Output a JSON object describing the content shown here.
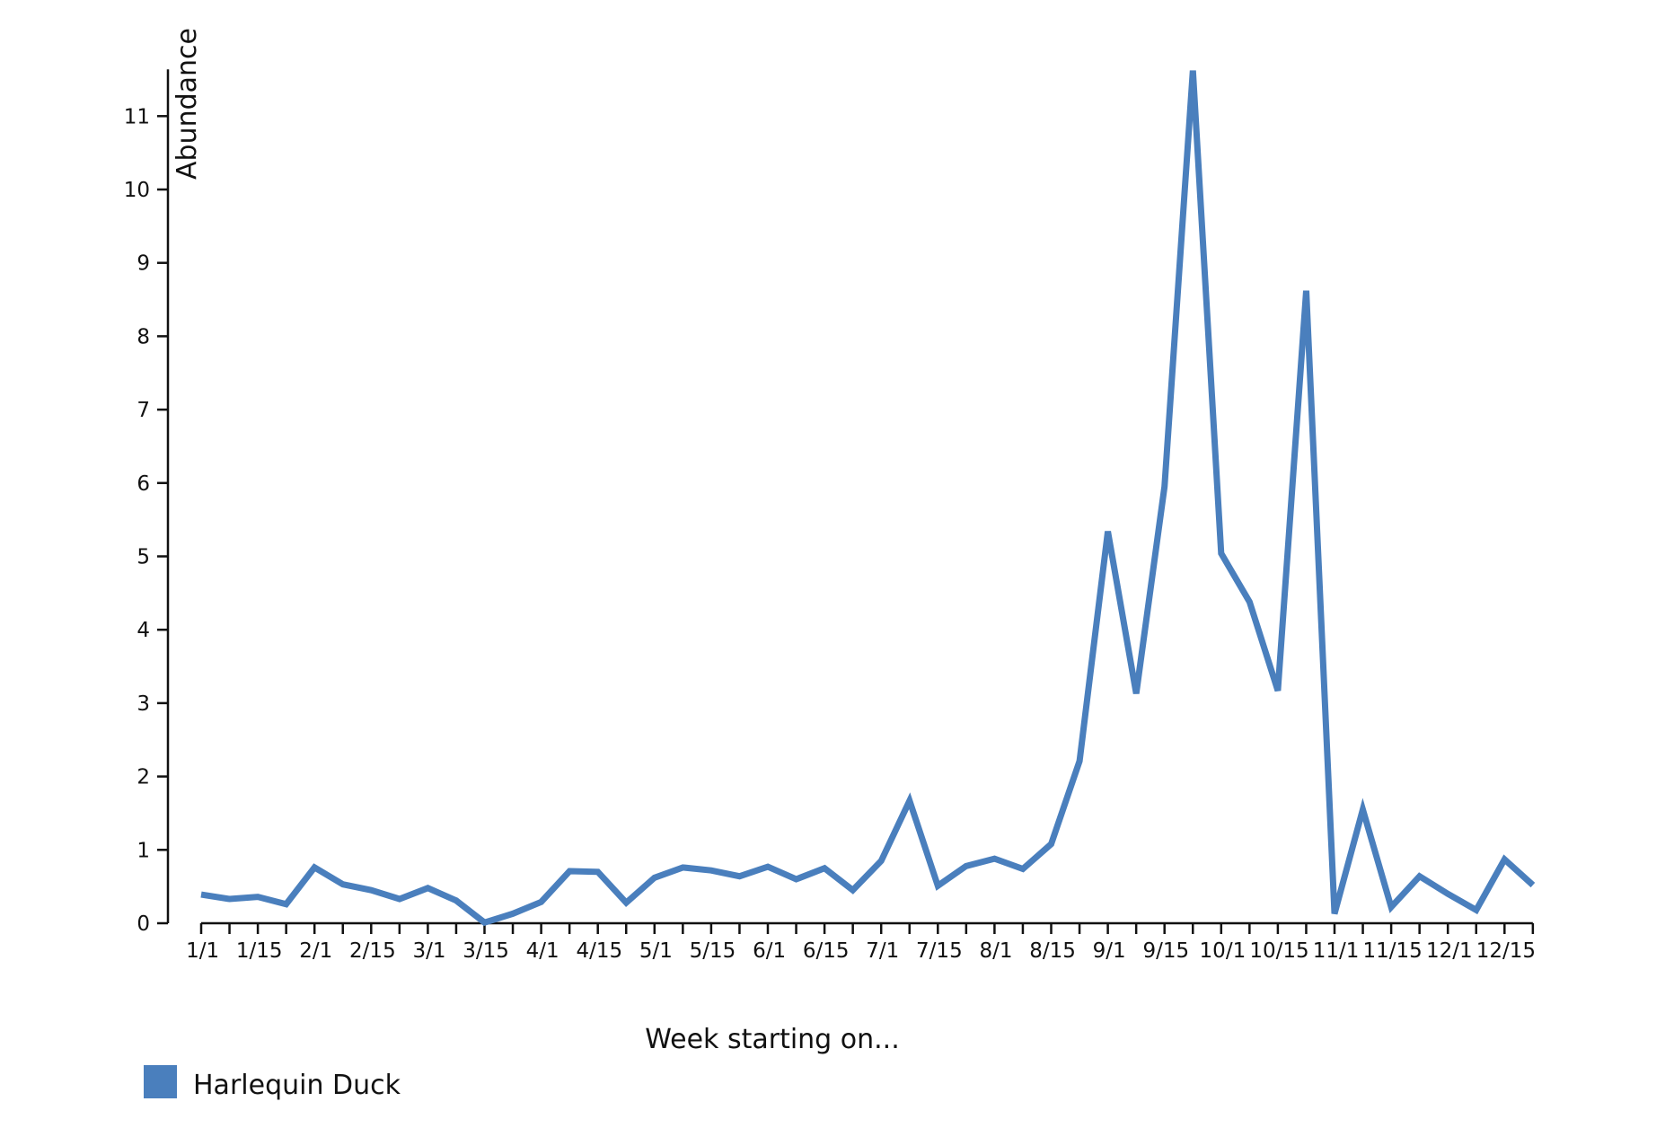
{
  "chart_data": {
    "type": "line",
    "ylabel": "Abundance",
    "xlabel": "Week starting on...",
    "ylim": [
      0,
      11.6
    ],
    "y_ticks": [
      0,
      1,
      2,
      3,
      4,
      5,
      6,
      7,
      8,
      9,
      10,
      11
    ],
    "grid": false,
    "legend_position": "bottom-left",
    "x_tick_labels": [
      "1/1",
      "1/15",
      "2/1",
      "2/15",
      "3/1",
      "3/15",
      "4/1",
      "4/15",
      "5/1",
      "5/15",
      "6/1",
      "6/15",
      "7/1",
      "7/15",
      "8/1",
      "8/15",
      "9/1",
      "9/15",
      "10/1",
      "10/15",
      "11/1",
      "11/15",
      "12/1",
      "12/15"
    ],
    "series": [
      {
        "name": "Harlequin Duck",
        "color": "#4a7fbd",
        "values": [
          0.39,
          0.33,
          0.36,
          0.26,
          0.76,
          0.53,
          0.45,
          0.33,
          0.48,
          0.31,
          0.01,
          0.13,
          0.29,
          0.71,
          0.7,
          0.28,
          0.62,
          0.76,
          0.72,
          0.64,
          0.77,
          0.6,
          0.75,
          0.45,
          0.85,
          1.67,
          0.51,
          0.78,
          0.88,
          0.74,
          1.08,
          2.21,
          5.34,
          3.13,
          5.95,
          11.62,
          5.04,
          4.38,
          3.17,
          8.62,
          0.13,
          1.55,
          0.22,
          0.64,
          0.4,
          0.18,
          0.87,
          0.52
        ]
      }
    ]
  },
  "legend": {
    "items": [
      {
        "label": "Harlequin Duck",
        "color": "#4a7fbd"
      }
    ]
  }
}
